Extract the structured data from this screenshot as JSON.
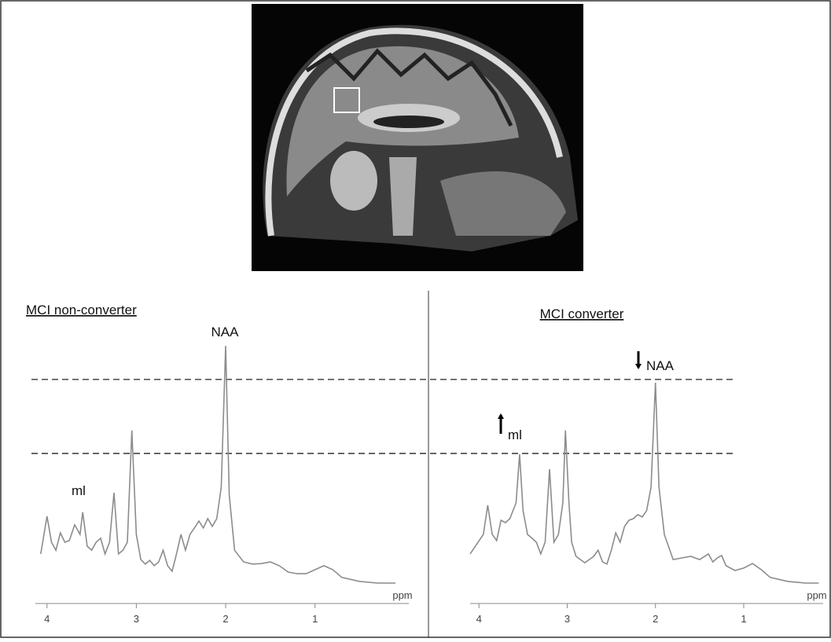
{
  "chart_data": [
    {
      "type": "line",
      "title": "MCI non-converter",
      "x_label": "ppm",
      "color": "#8c8c8c",
      "xlim": [
        4.13,
        -0.05
      ],
      "xticks": [
        4,
        3,
        2,
        1
      ],
      "ylim": [
        0,
        100
      ],
      "annotations": [
        "NAA",
        "ml"
      ],
      "x": [
        4.07,
        4.0,
        3.95,
        3.9,
        3.85,
        3.8,
        3.75,
        3.69,
        3.63,
        3.6,
        3.55,
        3.5,
        3.45,
        3.4,
        3.35,
        3.3,
        3.25,
        3.2,
        3.15,
        3.1,
        3.05,
        3.0,
        2.95,
        2.9,
        2.85,
        2.8,
        2.75,
        2.7,
        2.65,
        2.6,
        2.55,
        2.5,
        2.45,
        2.4,
        2.35,
        2.3,
        2.25,
        2.2,
        2.15,
        2.1,
        2.05,
        2.0,
        1.96,
        1.9,
        1.8,
        1.7,
        1.6,
        1.5,
        1.4,
        1.3,
        1.2,
        1.1,
        1.0,
        0.9,
        0.8,
        0.7,
        0.5,
        0.3,
        0.1
      ],
      "values": [
        16.2,
        30.3,
        20.6,
        17.6,
        24.1,
        20.6,
        21.2,
        27.1,
        23.5,
        31.8,
        19.1,
        17.6,
        20.6,
        22.1,
        16.2,
        20.6,
        39.1,
        16.2,
        17.6,
        20.6,
        62.4,
        23.5,
        14.1,
        12.4,
        13.8,
        11.8,
        13.2,
        17.6,
        11.8,
        9.7,
        16.2,
        23.5,
        17.6,
        23.5,
        25.9,
        28.5,
        25.9,
        29.4,
        26.5,
        29.4,
        41.2,
        94.1,
        38.2,
        17.6,
        13.2,
        12.4,
        12.6,
        13.2,
        11.8,
        9.4,
        8.8,
        8.8,
        10.3,
        11.8,
        10.3,
        7.4,
        5.9,
        5.3,
        5.3
      ]
    },
    {
      "type": "line",
      "title": "MCI converter",
      "x_label": "ppm",
      "color": "#8c8c8c",
      "xlim": [
        4.1,
        0.1
      ],
      "xticks": [
        4,
        3,
        2,
        1
      ],
      "ylim": [
        0,
        100
      ],
      "annotations": [
        "NAA",
        "ml"
      ],
      "x": [
        4.1,
        3.95,
        3.9,
        3.85,
        3.8,
        3.75,
        3.7,
        3.65,
        3.58,
        3.54,
        3.5,
        3.45,
        3.4,
        3.35,
        3.3,
        3.25,
        3.2,
        3.15,
        3.1,
        3.05,
        3.02,
        2.98,
        2.95,
        2.9,
        2.85,
        2.8,
        2.75,
        2.7,
        2.65,
        2.6,
        2.55,
        2.5,
        2.45,
        2.4,
        2.35,
        2.3,
        2.25,
        2.2,
        2.15,
        2.1,
        2.05,
        2.0,
        1.96,
        1.9,
        1.8,
        1.7,
        1.6,
        1.5,
        1.4,
        1.35,
        1.3,
        1.25,
        1.2,
        1.1,
        1.0,
        0.9,
        0.8,
        0.7,
        0.5,
        0.3,
        0.15
      ],
      "values": [
        16.2,
        23.5,
        34.4,
        23.5,
        21.2,
        28.8,
        27.9,
        29.4,
        35.3,
        53.5,
        32.4,
        23.5,
        22.1,
        20.6,
        16.2,
        20.6,
        47.9,
        20.6,
        23.5,
        35.3,
        62.4,
        35.3,
        20.6,
        15.3,
        14.1,
        12.9,
        14.1,
        15.3,
        17.6,
        13.2,
        12.4,
        17.6,
        24.1,
        20.6,
        26.5,
        28.8,
        29.4,
        30.9,
        30.0,
        32.4,
        41.2,
        80.3,
        41.2,
        23.5,
        14.1,
        14.7,
        15.3,
        14.1,
        16.2,
        13.2,
        14.7,
        15.6,
        11.8,
        10.0,
        10.9,
        12.6,
        10.3,
        7.4,
        5.9,
        5.3,
        5.3
      ]
    }
  ],
  "reference_levels": [
    81.5,
    53.8
  ]
}
